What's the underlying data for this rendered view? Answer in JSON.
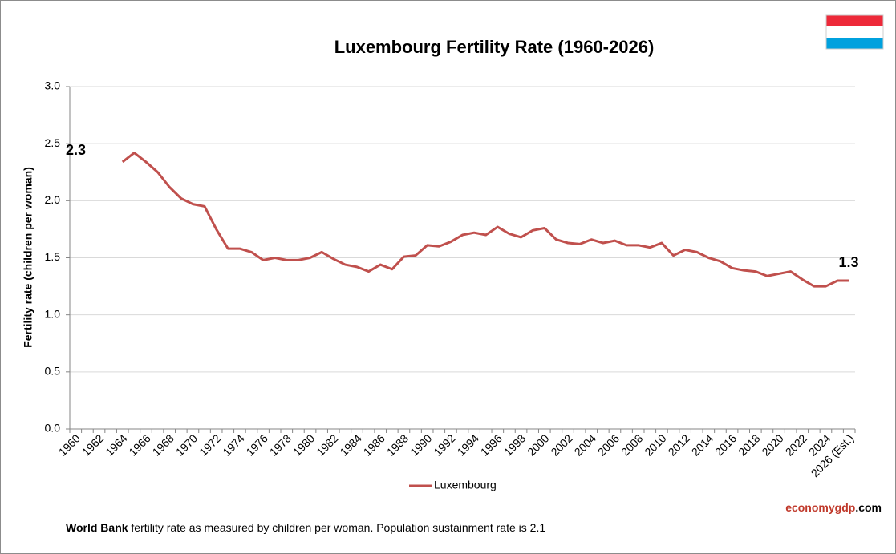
{
  "chart_data": {
    "type": "line",
    "title": "Luxembourg  Fertility Rate (1960-2026)",
    "y_axis_label": "Fertility rate (children per woman)",
    "categories": [
      "1960",
      null,
      "1962",
      null,
      "1964",
      null,
      "1966",
      null,
      "1968",
      null,
      "1970",
      null,
      "1972",
      null,
      "1974",
      null,
      "1976",
      null,
      "1978",
      null,
      "1980",
      null,
      "1982",
      null,
      "1984",
      null,
      "1986",
      null,
      "1988",
      null,
      "1990",
      null,
      "1992",
      null,
      "1994",
      null,
      "1996",
      null,
      "1998",
      null,
      "2000",
      null,
      "2002",
      null,
      "2004",
      null,
      "2006",
      null,
      "2008",
      null,
      "2010",
      null,
      "2012",
      null,
      "2014",
      null,
      "2016",
      null,
      "2018",
      null,
      "2020",
      null,
      "2022",
      null,
      "2024",
      null,
      "2026 (Est.)"
    ],
    "series": [
      {
        "name": "Luxembourg",
        "color": "#c0504d",
        "values": [
          null,
          null,
          null,
          null,
          2.34,
          2.42,
          2.34,
          2.25,
          2.12,
          2.02,
          1.97,
          1.95,
          1.75,
          1.58,
          1.58,
          1.55,
          1.48,
          1.5,
          1.48,
          1.48,
          1.5,
          1.55,
          1.49,
          1.44,
          1.42,
          1.38,
          1.44,
          1.4,
          1.51,
          1.52,
          1.61,
          1.6,
          1.64,
          1.7,
          1.72,
          1.7,
          1.77,
          1.71,
          1.68,
          1.74,
          1.76,
          1.66,
          1.63,
          1.62,
          1.66,
          1.63,
          1.65,
          1.61,
          1.61,
          1.59,
          1.63,
          1.52,
          1.57,
          1.55,
          1.5,
          1.47,
          1.41,
          1.39,
          1.38,
          1.34,
          1.36,
          1.38,
          1.31,
          1.25,
          1.25,
          1.3,
          1.3
        ]
      }
    ],
    "ylim": [
      0,
      3
    ],
    "yticks": [
      {
        "value": 0,
        "label": "0.0"
      },
      {
        "value": 0.5,
        "label": "0.5"
      },
      {
        "value": 1,
        "label": "1.0"
      },
      {
        "value": 1.5,
        "label": "1.5"
      },
      {
        "value": 2,
        "label": "2.0"
      },
      {
        "value": 2.5,
        "label": "2.5"
      },
      {
        "value": 3,
        "label": "3.0"
      }
    ],
    "grid": true,
    "legend": "bottom",
    "annotations": [
      {
        "text": "2.3"
      },
      {
        "text": "1.3"
      }
    ],
    "watermark": {
      "part1": "economy",
      "part2": "gdp",
      "part3": ".com"
    },
    "source": {
      "bold": "World Bank",
      "text": " fertility rate as measured by children per woman.  Population sustainment  rate is 2.1"
    }
  }
}
